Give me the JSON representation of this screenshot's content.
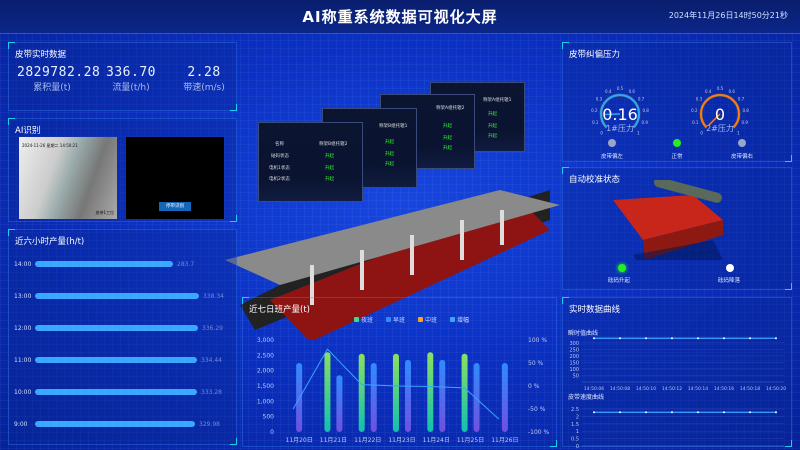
{
  "header": {
    "title": "AI称重系统数据可视化大屏",
    "datetime": "2024年11月26日14时50分21秒"
  },
  "belt_realtime": {
    "title": "皮带实时数据",
    "stats": [
      {
        "value": "2829782.28",
        "label": "累积量(t)"
      },
      {
        "value": "336.70",
        "label": "流量(t/h)"
      },
      {
        "value": "2.28",
        "label": "带速(m/s)"
      }
    ]
  },
  "ai_recognition": {
    "title": "AI识别",
    "camera_overlay": "2024-11-26 星期二 14:50:21",
    "camera_label": "皮带1工位",
    "button_label": "停带识别"
  },
  "six_hour_output": {
    "title": "近六小时产量(h/t)",
    "max": 340,
    "rows": [
      {
        "time": "14:00",
        "value": 283.7
      },
      {
        "time": "13:00",
        "value": 338.34
      },
      {
        "time": "12:00",
        "value": 336.29
      },
      {
        "time": "11:00",
        "value": 334.44
      },
      {
        "time": "10:00",
        "value": 333.28
      },
      {
        "time": "9:00",
        "value": 329.98
      }
    ]
  },
  "status_windows": [
    {
      "name": "称架A组托辊1",
      "states": [
        "升起",
        "升起",
        "升起"
      ]
    },
    {
      "name": "称架A组托辊2",
      "states": [
        "升起",
        "升起",
        "升起"
      ]
    },
    {
      "name": "称架B组托辊1",
      "states": [
        "升起",
        "升起",
        "升起"
      ]
    },
    {
      "name": "称架B组托辊2",
      "header_label": "名称",
      "row_labels": [
        "砝码状态",
        "电机1状态",
        "电机2状态"
      ],
      "states": [
        "升起",
        "升起",
        "升起"
      ]
    }
  ],
  "pressure": {
    "title": "皮带纠偏压力",
    "gauges": [
      {
        "value": "0.16",
        "label": "1#压力",
        "color": "#2aa8ff"
      },
      {
        "value": "0",
        "label": "2#压力",
        "color": "#ff7a10"
      }
    ],
    "ticks": [
      "0",
      "0.1",
      "0.2",
      "0.3",
      "0.4",
      "0.5",
      "0.6",
      "0.7",
      "0.8",
      "0.9",
      "1"
    ],
    "indicators": [
      {
        "label": "皮带偏左",
        "color": "#9aa6c8"
      },
      {
        "label": "正常",
        "color": "#22ee22"
      },
      {
        "label": "皮带偏右",
        "color": "#9aa6c8"
      }
    ]
  },
  "calibration": {
    "title": "自动校准状态",
    "indicators": [
      {
        "label": "砝码升起",
        "color": "#22ee22"
      },
      {
        "label": "砝码降落",
        "color": "#ffffff"
      }
    ]
  },
  "realtime_curves": {
    "title": "实时数据曲线",
    "charts": [
      {
        "title": "瞬时值曲线",
        "yticks": [
          "50",
          "100",
          "150",
          "200",
          "250",
          "300"
        ],
        "ymax": 330,
        "x": [
          "14:50:06",
          "14:50:08",
          "14:50:10",
          "14:50:12",
          "14:50:14",
          "14:50:16",
          "14:50:18",
          "14:50:20"
        ],
        "values": [
          336,
          336,
          336,
          336,
          336,
          336,
          336,
          336
        ]
      },
      {
        "title": "皮带速度曲线",
        "yticks": [
          "0",
          "0.5",
          "1",
          "1.5",
          "2",
          "2.5"
        ],
        "ymax": 2.5,
        "x": [
          "14:50:06",
          "14:50:08",
          "14:50:10",
          "14:50:12",
          "14:50:14",
          "14:50:16",
          "14:50:18",
          "14:50:20"
        ],
        "values": [
          2.28,
          2.28,
          2.28,
          2.28,
          2.28,
          2.28,
          2.28,
          2.28
        ]
      }
    ]
  },
  "chart_data": {
    "type": "bar",
    "title": "近七日班产量(t)",
    "categories": [
      "11月20日",
      "11月21日",
      "11月22日",
      "11月23日",
      "11月24日",
      "11月25日",
      "11月26日"
    ],
    "ylim": [
      0,
      3000
    ],
    "yticks": [
      "0",
      "500",
      "1,000",
      "1,500",
      "2,000",
      "2,500",
      "3,000"
    ],
    "y2lim": [
      -100,
      100
    ],
    "y2ticks": [
      "-100 %",
      "-50 %",
      "0 %",
      "50 %",
      "100 %"
    ],
    "legend_position": "top",
    "series": [
      {
        "name": "夜班",
        "color": "#3fd98a",
        "values": [
          0,
          2600,
          2550,
          2550,
          2600,
          2550,
          0
        ]
      },
      {
        "name": "早班",
        "color": "#2e8cff",
        "values": [
          2250,
          1850,
          2250,
          2350,
          2350,
          2250,
          2250
        ]
      },
      {
        "name": "中班",
        "color": "#f5a623",
        "values": [
          0,
          0,
          0,
          0,
          0,
          0,
          0
        ]
      },
      {
        "name": "增幅",
        "color": "#38a6ff",
        "type": "line",
        "values": [
          -50,
          80,
          3,
          0,
          -1,
          -4,
          -72
        ]
      }
    ]
  }
}
